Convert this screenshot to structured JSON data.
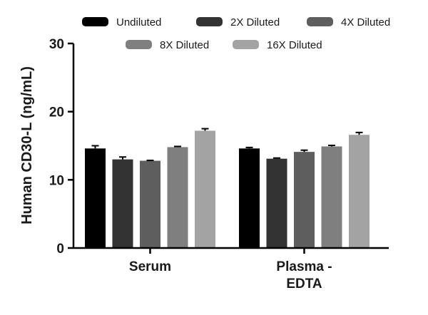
{
  "chart_data": {
    "type": "bar",
    "ylabel": "Human CD30-L (ng/mL)",
    "xlabel": "",
    "ylim": [
      0,
      30
    ],
    "yticks": [
      0,
      10,
      20,
      30
    ],
    "grid": false,
    "legend_position": "top",
    "categories": [
      "Serum",
      "Plasma -\nEDTA"
    ],
    "series": [
      {
        "name": "Undiluted",
        "color": "#000000",
        "values": [
          14.6,
          14.6
        ],
        "errors": [
          0.4,
          0.15
        ]
      },
      {
        "name": "2X Diluted",
        "color": "#333333",
        "values": [
          13.0,
          13.1
        ],
        "errors": [
          0.35,
          0.1
        ]
      },
      {
        "name": "4X Diluted",
        "color": "#5e5e5e",
        "values": [
          12.8,
          14.1
        ],
        "errors": [
          0.05,
          0.25
        ]
      },
      {
        "name": "8X Diluted",
        "color": "#7f7f7f",
        "values": [
          14.8,
          14.9
        ],
        "errors": [
          0.1,
          0.15
        ]
      },
      {
        "name": "16X Diluted",
        "color": "#a3a3a3",
        "values": [
          17.2,
          16.6
        ],
        "errors": [
          0.3,
          0.35
        ]
      }
    ]
  }
}
